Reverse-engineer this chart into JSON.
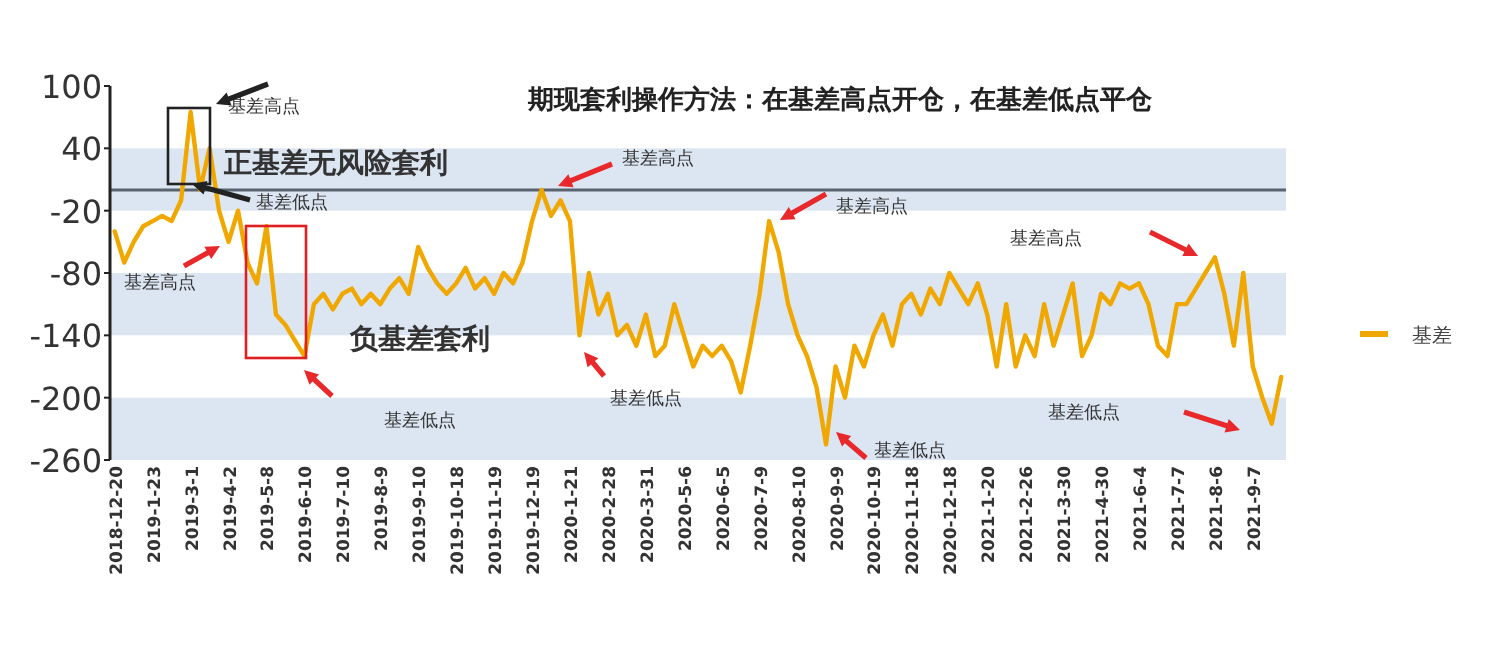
{
  "chart_data": {
    "type": "line",
    "title": "期现套利操作方法：在基差高点开仓，在基差低点平仓",
    "categories": [
      "2018-12-20",
      null,
      null,
      null,
      "2019-1-23",
      null,
      null,
      null,
      "2019-3-1",
      null,
      null,
      null,
      "2019-4-2",
      null,
      null,
      null,
      "2019-5-8",
      null,
      null,
      null,
      "2019-6-10",
      null,
      null,
      null,
      "2019-7-10",
      null,
      null,
      null,
      "2019-8-9",
      null,
      null,
      null,
      "2019-9-10",
      null,
      null,
      null,
      "2019-10-18",
      null,
      null,
      null,
      "2019-11-19",
      null,
      null,
      null,
      "2019-12-19",
      null,
      null,
      null,
      "2020-1-21",
      null,
      null,
      null,
      "2020-2-28",
      null,
      null,
      null,
      "2020-3-31",
      null,
      null,
      null,
      "2020-5-6",
      null,
      null,
      null,
      "2020-6-5",
      null,
      null,
      null,
      "2020-7-9",
      null,
      null,
      null,
      "2020-8-10",
      null,
      null,
      null,
      "2020-9-9",
      null,
      null,
      null,
      "2020-10-19",
      null,
      null,
      null,
      "2020-11-18",
      null,
      null,
      null,
      "2020-12-18",
      null,
      null,
      null,
      "2021-1-20",
      null,
      null,
      null,
      "2021-2-26",
      null,
      null,
      null,
      "2021-3-30",
      null,
      null,
      null,
      "2021-4-30",
      null,
      null,
      null,
      "2021-6-4",
      null,
      null,
      null,
      "2021-7-7",
      null,
      null,
      null,
      "2021-8-6",
      null,
      null,
      null,
      "2021-9-7",
      null,
      null,
      null
    ],
    "series": [
      {
        "name": "基差",
        "color": "#f0a800",
        "values": [
          -40,
          -70,
          -50,
          -35,
          -30,
          -25,
          -30,
          -10,
          75,
          0,
          40,
          -20,
          -50,
          -20,
          -70,
          -90,
          -35,
          -120,
          -130,
          -145,
          -160,
          -110,
          -100,
          -115,
          -100,
          -95,
          -110,
          -100,
          -110,
          -95,
          -85,
          -100,
          -55,
          -75,
          -90,
          -100,
          -90,
          -75,
          -95,
          -85,
          -100,
          -80,
          -90,
          -70,
          -30,
          0,
          -25,
          -10,
          -30,
          -140,
          -80,
          -120,
          -100,
          -140,
          -130,
          -150,
          -120,
          -160,
          -150,
          -110,
          -140,
          -170,
          -150,
          -160,
          -150,
          -165,
          -195,
          -150,
          -100,
          -30,
          -60,
          -110,
          -140,
          -160,
          -190,
          -245,
          -170,
          -200,
          -150,
          -170,
          -140,
          -120,
          -150,
          -110,
          -100,
          -120,
          -95,
          -110,
          -80,
          -95,
          -110,
          -90,
          -120,
          -170,
          -110,
          -170,
          -140,
          -160,
          -110,
          -150,
          -120,
          -90,
          -160,
          -140,
          -100,
          -110,
          -90,
          -95,
          -90,
          -110,
          -150,
          -160,
          -110,
          -110,
          -95,
          -80,
          -65,
          -100,
          -150,
          -80,
          -170,
          -200,
          -225,
          -180
        ]
      }
    ],
    "ylim": [
      -260,
      100
    ],
    "yticks": [
      100,
      40,
      -20,
      -80,
      -140,
      -200,
      -260
    ],
    "bands": [
      {
        "axis": "y",
        "from": -20,
        "to": 40,
        "color": "#dce6f2"
      },
      {
        "axis": "y",
        "from": -140,
        "to": -80,
        "color": "#dce6f2"
      },
      {
        "axis": "y",
        "from": -260,
        "to": -200,
        "color": "#dce6f2"
      }
    ],
    "ref_lines": [
      {
        "axis": "y",
        "value": 0,
        "color": "#5a6470"
      }
    ],
    "annotations": [
      "正基差无风险套利",
      "负基差套利",
      "基差高点",
      "基差高点",
      "基差高点",
      "基差高点",
      "基差高点",
      "基差低点",
      "基差低点",
      "基差低点",
      "基差低点",
      "基差低点"
    ],
    "legend": "right",
    "grid": false
  }
}
